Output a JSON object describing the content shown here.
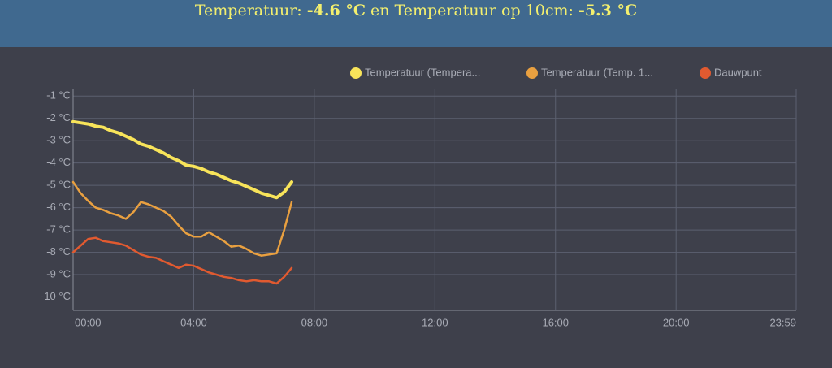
{
  "header": {
    "label1": "Temperatuur:",
    "value1": "-4.6 °C",
    "label2": "en Temperatuur op 10cm:",
    "value2": "-5.3 °C"
  },
  "chart_data": {
    "type": "line",
    "x": [
      0,
      0.25,
      0.5,
      0.75,
      1,
      1.25,
      1.5,
      1.75,
      2,
      2.25,
      2.5,
      2.75,
      3,
      3.25,
      3.5,
      3.75,
      4,
      4.25,
      4.5,
      4.75,
      5,
      5.25,
      5.5,
      5.75,
      6,
      6.25,
      6.5,
      6.75,
      7,
      7.25
    ],
    "series": [
      {
        "name": "Temperatuur (Tempera...",
        "color": "#f8e45a",
        "values": [
          -2.15,
          -2.2,
          -2.25,
          -2.35,
          -2.4,
          -2.55,
          -2.65,
          -2.8,
          -2.95,
          -3.15,
          -3.25,
          -3.4,
          -3.55,
          -3.75,
          -3.9,
          -4.1,
          -4.15,
          -4.25,
          -4.4,
          -4.5,
          -4.65,
          -4.8,
          -4.9,
          -5.05,
          -5.2,
          -5.35,
          -5.45,
          -5.55,
          -5.3,
          -4.85
        ]
      },
      {
        "name": "Temperatuur (Temp. 1...",
        "color": "#e9a040",
        "values": [
          -4.85,
          -5.35,
          -5.7,
          -6.0,
          -6.1,
          -6.25,
          -6.35,
          -6.5,
          -6.2,
          -5.75,
          -5.85,
          -6.0,
          -6.15,
          -6.4,
          -6.8,
          -7.15,
          -7.3,
          -7.3,
          -7.1,
          -7.3,
          -7.5,
          -7.75,
          -7.7,
          -7.85,
          -8.05,
          -8.15,
          -8.1,
          -8.05,
          -7.0,
          -5.75
        ]
      },
      {
        "name": "Dauwpunt",
        "color": "#e15a30",
        "values": [
          -8.0,
          -7.7,
          -7.4,
          -7.35,
          -7.5,
          -7.55,
          -7.6,
          -7.7,
          -7.9,
          -8.1,
          -8.2,
          -8.25,
          -8.4,
          -8.55,
          -8.7,
          -8.55,
          -8.6,
          -8.75,
          -8.9,
          -9.0,
          -9.1,
          -9.15,
          -9.25,
          -9.3,
          -9.25,
          -9.3,
          -9.3,
          -9.4,
          -9.1,
          -8.7
        ]
      }
    ],
    "xlim": [
      0,
      23.983
    ],
    "xticks": [
      {
        "value": 0,
        "label": "00:00"
      },
      {
        "value": 4,
        "label": "04:00"
      },
      {
        "value": 8,
        "label": "08:00"
      },
      {
        "value": 12,
        "label": "12:00"
      },
      {
        "value": 16,
        "label": "16:00"
      },
      {
        "value": 20,
        "label": "20:00"
      },
      {
        "value": 23.983,
        "label": "23:59"
      }
    ],
    "ylim": [
      -10.6,
      -0.7
    ],
    "yticks": [
      {
        "value": -1,
        "label": "-1 °C"
      },
      {
        "value": -2,
        "label": "-2 °C"
      },
      {
        "value": -3,
        "label": "-3 °C"
      },
      {
        "value": -4,
        "label": "-4 °C"
      },
      {
        "value": -5,
        "label": "-5 °C"
      },
      {
        "value": -6,
        "label": "-6 °C"
      },
      {
        "value": -7,
        "label": "-7 °C"
      },
      {
        "value": -8,
        "label": "-8 °C"
      },
      {
        "value": -9,
        "label": "-9 °C"
      },
      {
        "value": -10,
        "label": "-10 °C"
      }
    ],
    "grid": true
  }
}
